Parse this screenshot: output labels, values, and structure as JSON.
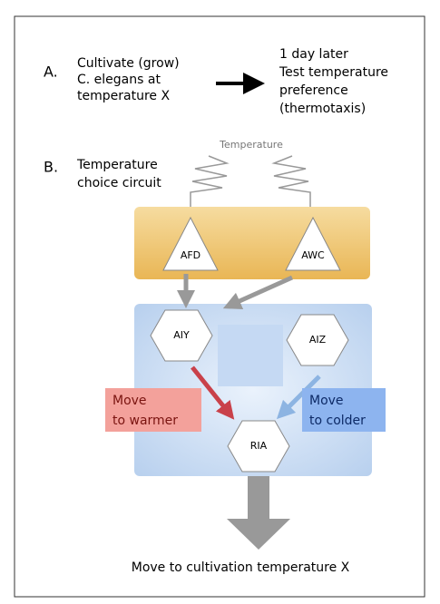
{
  "step_a": {
    "label": "A.",
    "cause": [
      "Cultivate (grow)",
      "C. elegans at",
      "temperature X"
    ],
    "effect": [
      "1 day later",
      "Test temperature",
      "preference",
      "(thermotaxis)"
    ]
  },
  "step_b": {
    "label": "B.",
    "title": [
      "Temperature",
      "choice circuit"
    ],
    "stimulus": "Temperature"
  },
  "nodes": [
    {
      "label": "AFD"
    },
    {
      "label": "AWC"
    },
    {
      "label": "AIY"
    },
    {
      "label": "AIZ"
    },
    {
      "label": "RIA"
    }
  ],
  "warmer": [
    "Move",
    "to warmer"
  ],
  "colder": [
    "Move",
    "to colder"
  ],
  "outcome": "Move to cultivation temperature X"
}
